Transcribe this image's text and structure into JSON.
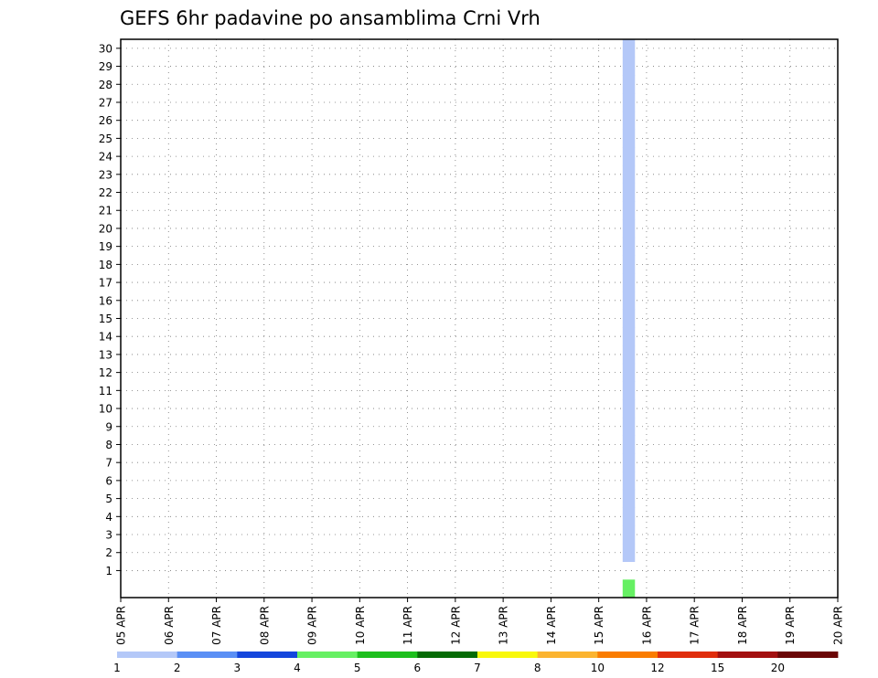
{
  "chart_data": {
    "type": "heatmap",
    "title": "GEFS 6hr padavine po ansamblima Crni Vrh",
    "xlabel": "",
    "ylabel": "",
    "x_tick_labels": [
      "05 APR",
      "06 APR",
      "07 APR",
      "08 APR",
      "09 APR",
      "10 APR",
      "11 APR",
      "12 APR",
      "13 APR",
      "14 APR",
      "15 APR",
      "16 APR",
      "17 APR",
      "18 APR",
      "19 APR",
      "20 APR"
    ],
    "x_range_hours": [
      0,
      360
    ],
    "step_hours": 6,
    "y_tick_labels": [
      "1",
      "2",
      "3",
      "4",
      "5",
      "6",
      "7",
      "8",
      "9",
      "10",
      "11",
      "12",
      "13",
      "14",
      "15",
      "16",
      "17",
      "18",
      "19",
      "20",
      "21",
      "22",
      "23",
      "24",
      "25",
      "26",
      "27",
      "28",
      "29",
      "30"
    ],
    "members": 31,
    "grid": true,
    "legend": {
      "placement": "bottom",
      "labels": [
        "1",
        "2",
        "3",
        "4",
        "5",
        "6",
        "7",
        "8",
        "10",
        "12",
        "15",
        "20"
      ],
      "colors": [
        "#b4c8f8",
        "#5a8ff5",
        "#1446dc",
        "#66f063",
        "#1dbf1d",
        "#056b05",
        "#f8f80b",
        "#fbb430",
        "#fa7c00",
        "#e02d0c",
        "#a31010",
        "#6b0606"
      ]
    },
    "cells": [
      [
        2,
        42,
        0
      ],
      [
        2,
        42,
        0
      ],
      [
        2,
        42,
        0
      ],
      [
        3,
        42,
        0
      ],
      [
        3,
        42,
        0
      ],
      [
        3,
        42,
        0
      ],
      [
        4,
        42,
        0
      ],
      [
        5,
        42,
        0
      ],
      [
        5,
        42,
        0
      ],
      [
        6,
        42,
        0
      ],
      [
        6,
        42,
        0
      ],
      [
        7,
        42,
        0
      ],
      [
        7,
        42,
        0
      ],
      [
        8,
        42,
        0
      ],
      [
        8,
        42,
        0
      ],
      [
        9,
        42,
        0
      ],
      [
        9,
        42,
        0
      ],
      [
        10,
        42,
        0
      ],
      [
        10,
        42,
        0
      ],
      [
        11,
        42,
        0
      ],
      [
        11,
        42,
        0
      ],
      [
        12,
        42,
        0
      ],
      [
        12,
        42,
        0
      ],
      [
        13,
        42,
        0
      ],
      [
        13,
        42,
        0
      ],
      [
        14,
        42,
        0
      ],
      [
        15,
        42,
        0
      ],
      [
        15,
        42,
        0
      ],
      [
        16,
        42,
        0
      ],
      [
        16,
        42,
        0
      ],
      [
        17,
        42,
        0
      ],
      [
        17,
        42,
        0
      ],
      [
        18,
        42,
        0
      ],
      [
        18,
        42,
        0
      ],
      [
        19,
        42,
        0
      ],
      [
        19,
        42,
        0
      ],
      [
        20,
        42,
        0
      ],
      [
        20,
        42,
        0
      ],
      [
        21,
        42,
        0
      ],
      [
        21,
        42,
        0
      ],
      [
        22,
        42,
        0
      ],
      [
        22,
        42,
        0
      ],
      [
        23,
        42,
        0
      ],
      [
        23,
        42,
        0
      ],
      [
        24,
        42,
        0
      ],
      [
        24,
        42,
        0
      ],
      [
        25,
        42,
        0
      ],
      [
        25,
        42,
        0
      ],
      [
        26,
        42,
        0
      ],
      [
        26,
        42,
        0
      ],
      [
        27,
        42,
        0
      ],
      [
        28,
        42,
        0
      ],
      [
        28,
        42,
        0
      ],
      [
        29,
        42,
        0
      ],
      [
        29,
        42,
        0
      ],
      [
        30,
        42,
        0
      ],
      [
        30,
        42,
        0
      ],
      [
        0,
        42,
        3
      ],
      [
        0,
        42,
        3
      ],
      [
        0,
        42,
        3
      ],
      [
        0,
        42,
        3
      ],
      [
        0,
        42,
        3
      ],
      [
        0,
        42,
        3
      ]
    ]
  }
}
